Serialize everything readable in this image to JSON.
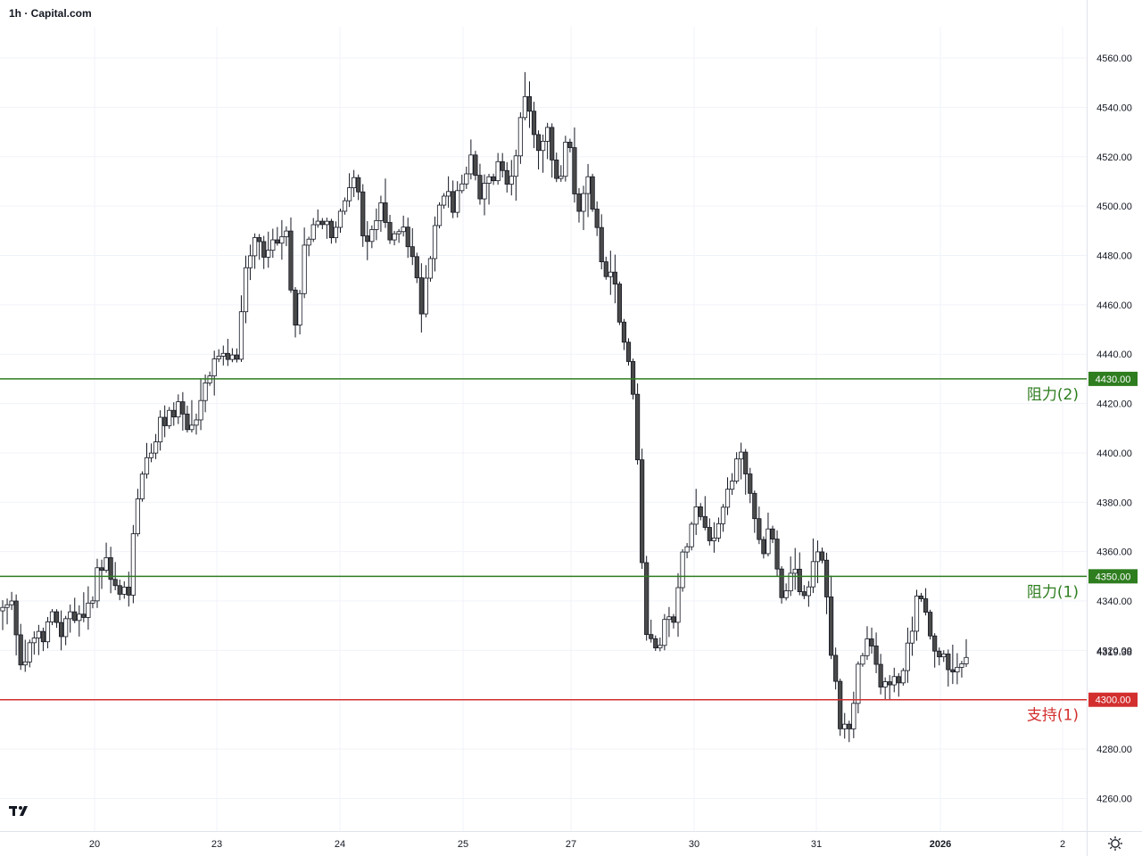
{
  "title": "1h · Capital.com",
  "logo_icon": "tradingview-logo-icon",
  "settings_icon": "gear-icon",
  "chart_data": {
    "type": "candlestick",
    "ylim": [
      4250,
      4575
    ],
    "y_ticks": [
      "4260.00",
      "4280.00",
      "4300.00",
      "4320.00",
      "4340.00",
      "4360.00",
      "4380.00",
      "4400.00",
      "4420.00",
      "4440.00",
      "4460.00",
      "4480.00",
      "4500.00",
      "4520.00",
      "4540.00",
      "4560.00"
    ],
    "x_ticks": [
      "20",
      "23",
      "24",
      "25",
      "27",
      "30",
      "31",
      "2026",
      "2"
    ],
    "last_price": "4319.38",
    "levels": [
      {
        "value": 4430,
        "badge": "4430.00",
        "label": "阻力(2)",
        "color": "#2e7d1f"
      },
      {
        "value": 4350,
        "badge": "4350.00",
        "label": "阻力(1)",
        "color": "#2e7d1f"
      },
      {
        "value": 4300,
        "badge": "4300.00",
        "label": "支持(1)",
        "color": "#d32f2f"
      }
    ],
    "path": [
      4336,
      4338,
      4314,
      4322,
      4326,
      4332,
      4328,
      4336,
      4333,
      4340,
      4355,
      4352,
      4342,
      4346,
      4390,
      4397,
      4409,
      4415,
      4420,
      4410,
      4415,
      4427,
      4440,
      4435,
      4438,
      4478,
      4490,
      4480,
      4488,
      4490,
      4448,
      4480,
      4490,
      4498,
      4485,
      4500,
      4518,
      4488,
      4492,
      4498,
      4482,
      4497,
      4480,
      4460,
      4483,
      4508,
      4500,
      4505,
      4520,
      4502,
      4510,
      4515,
      4510,
      4530,
      4545,
      4520,
      4530,
      4505,
      4530,
      4495,
      4515,
      4490,
      4470,
      4468,
      4440,
      4420,
      4330,
      4320,
      4330,
      4335,
      4360,
      4380,
      4375,
      4365,
      4378,
      4392,
      4402,
      4375,
      4360,
      4372,
      4340,
      4356,
      4338,
      4350,
      4365,
      4326,
      4292,
      4286,
      4316,
      4322,
      4310,
      4305,
      4308,
      4320,
      4345,
      4330,
      4318,
      4315,
      4312,
      4319
    ]
  }
}
